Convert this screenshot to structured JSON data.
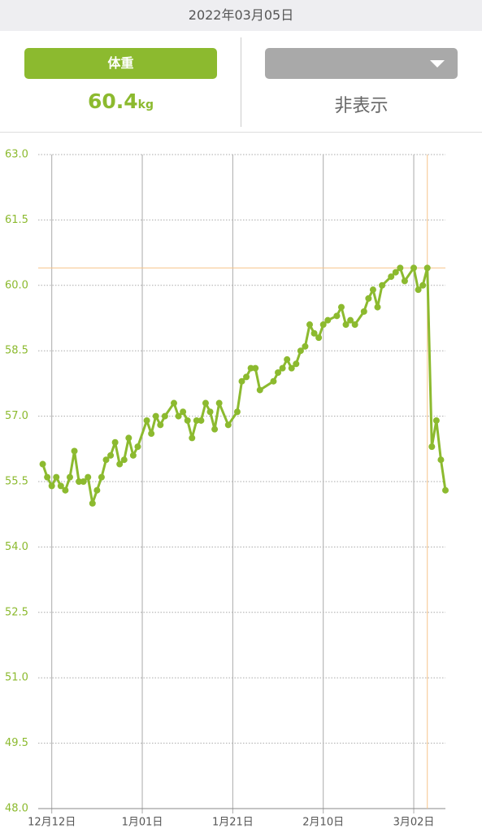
{
  "header": {
    "date": "2022年03月05日",
    "left_button": "体重",
    "weight": 60.4,
    "weight_unit": "kg",
    "right_label": "非表示"
  },
  "chart_data": {
    "type": "line",
    "color": "#8cba2f",
    "grid": true,
    "x": [
      "12月10日",
      "12月11日",
      "12月12日",
      "12月13日",
      "12月14日",
      "12月15日",
      "12月16日",
      "12月17日",
      "12月18日",
      "12月19日",
      "12月20日",
      "12月21日",
      "12月22日",
      "12月23日",
      "12月24日",
      "12月25日",
      "12月26日",
      "12月27日",
      "12月28日",
      "12月29日",
      "12月30日",
      "12月31日",
      "1月02日",
      "1月03日",
      "1月04日",
      "1月05日",
      "1月06日",
      "1月08日",
      "1月09日",
      "1月10日",
      "1月11日",
      "1月12日",
      "1月13日",
      "1月14日",
      "1月15日",
      "1月16日",
      "1月17日",
      "1月18日",
      "1月20日",
      "1月22日",
      "1月23日",
      "1月24日",
      "1月25日",
      "1月26日",
      "1月27日",
      "1月30日",
      "1月31日",
      "2月01日",
      "2月02日",
      "2月03日",
      "2月04日",
      "2月05日",
      "2月06日",
      "2月07日",
      "2月08日",
      "2月09日",
      "2月10日",
      "2月11日",
      "2月13日",
      "2月14日",
      "2月15日",
      "2月16日",
      "2月17日",
      "2月19日",
      "2月20日",
      "2月21日",
      "2月22日",
      "2月23日",
      "2月25日",
      "2月26日",
      "2月27日",
      "2月28日",
      "3月02日",
      "3月03日",
      "3月04日",
      "3月05日",
      "3月06日",
      "3月07日",
      "3月08日",
      "3月09日"
    ],
    "values": [
      55.9,
      55.6,
      55.4,
      55.6,
      55.4,
      55.3,
      55.6,
      56.2,
      55.5,
      55.5,
      55.6,
      55.0,
      55.3,
      55.6,
      56.0,
      56.1,
      56.4,
      55.9,
      56.0,
      56.5,
      56.1,
      56.3,
      56.9,
      56.6,
      57.0,
      56.8,
      57.0,
      57.3,
      57.0,
      57.1,
      56.9,
      56.5,
      56.9,
      56.9,
      57.3,
      57.1,
      56.7,
      57.3,
      56.8,
      57.1,
      57.8,
      57.9,
      58.1,
      58.1,
      57.6,
      57.8,
      58.0,
      58.1,
      58.3,
      58.1,
      58.2,
      58.5,
      58.6,
      59.1,
      58.9,
      58.8,
      59.1,
      59.2,
      59.3,
      59.5,
      59.1,
      59.2,
      59.1,
      59.4,
      59.7,
      59.9,
      59.5,
      60.0,
      60.2,
      60.3,
      60.4,
      60.1,
      60.4,
      59.9,
      60.0,
      60.4,
      56.3,
      56.9,
      56.0,
      55.3
    ],
    "xlim": [
      "12月09日",
      "3月09日"
    ],
    "xticks": [
      "12月12日",
      "1月01日",
      "1月21日",
      "2月10日",
      "3月02日"
    ],
    "ylim": [
      48,
      63
    ],
    "yticks": [
      {
        "value": 48,
        "label": "48.0"
      },
      49.5,
      {
        "value": 51,
        "label": "51.0"
      },
      52.5,
      {
        "value": 54,
        "label": "54.0"
      },
      55.5,
      {
        "value": 57,
        "label": "57.0"
      },
      58.5,
      {
        "value": 60,
        "label": "60.0"
      },
      61.5,
      {
        "value": 63,
        "label": "63.0"
      }
    ],
    "crosshair": {
      "x": "3月05日",
      "y": 60.4,
      "color": "#f7c48a"
    }
  }
}
